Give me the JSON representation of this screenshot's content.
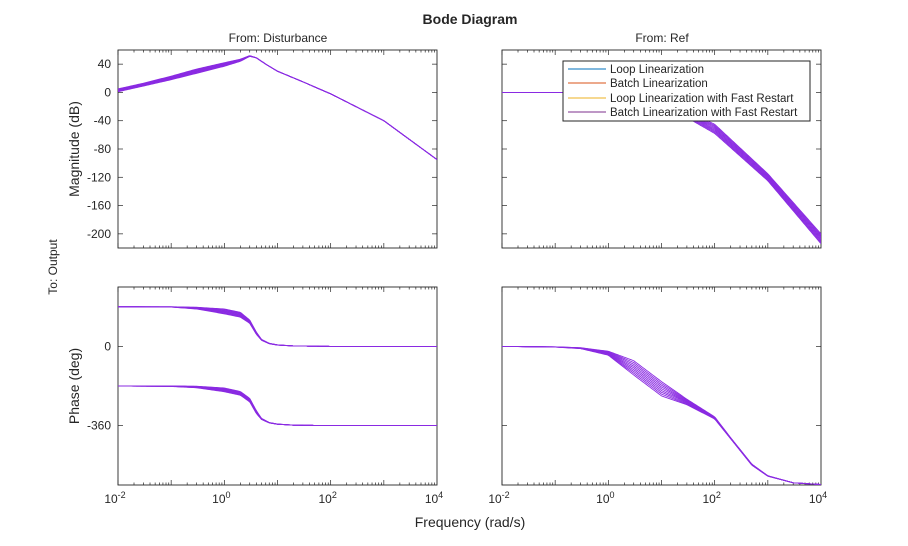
{
  "chart_data": {
    "type": "line",
    "plot_kind": "bode",
    "title": "Bode Diagram",
    "xlabel": "Frequency (rad/s)",
    "output_label": "To: Output",
    "x_scale": "log",
    "xlim": [
      0.01,
      10000
    ],
    "x_ticks": [
      {
        "base": "10",
        "exp": "-2"
      },
      {
        "base": "10",
        "exp": "0"
      },
      {
        "base": "10",
        "exp": "2"
      },
      {
        "base": "10",
        "exp": "4"
      }
    ],
    "x_tick_values": [
      0.01,
      1,
      100,
      10000
    ],
    "columns": [
      "From: Disturbance",
      "From: Ref"
    ],
    "magnitude": {
      "ylabel": "Magnitude (dB)",
      "ylim": [
        -220,
        60
      ],
      "ticks": [
        40,
        0,
        -40,
        -80,
        -120,
        -160,
        -200
      ],
      "tick_labels": [
        "40",
        "0",
        "-40",
        "-80",
        "-120",
        "-160",
        "-200"
      ]
    },
    "phase": {
      "ylabel": "Phase (deg)",
      "ylim": [
        -630,
        270
      ],
      "ticks": [
        0,
        -360
      ],
      "tick_labels": [
        "0",
        "-360"
      ]
    },
    "legend": {
      "position": "top-right of From: Ref magnitude axes",
      "entries": [
        {
          "name": "Loop Linearization",
          "color": "#0072BD"
        },
        {
          "name": "Batch Linearization",
          "color": "#D95319"
        },
        {
          "name": "Loop Linearization with Fast Restart",
          "color": "#EDB120"
        },
        {
          "name": "Batch Linearization with Fast Restart",
          "color": "#7E2F8E"
        }
      ]
    },
    "visible_series_color": "#8a2be2",
    "series": [
      {
        "from": "Disturbance",
        "magnitude_db": {
          "x": [
            0.01,
            0.03,
            0.1,
            0.3,
            1,
            2,
            3,
            4,
            6,
            10,
            30,
            100,
            1000,
            10000
          ],
          "low": [
            1,
            9,
            18,
            27,
            37,
            44,
            51,
            49,
            40,
            30,
            15,
            -2,
            -40,
            -95
          ],
          "high": [
            5,
            13,
            23,
            33,
            42,
            47,
            52,
            49,
            40,
            30,
            15,
            -2,
            -40,
            -95
          ]
        },
        "phase_upper_deg": {
          "x": [
            0.01,
            0.1,
            0.3,
            1,
            2,
            3,
            4,
            5,
            7,
            10,
            20,
            100,
            1000,
            10000
          ],
          "low": [
            180,
            179,
            170,
            148,
            133,
            105,
            55,
            28,
            12,
            6,
            2,
            0,
            0,
            0
          ],
          "high": [
            180,
            180,
            178,
            170,
            155,
            120,
            65,
            32,
            14,
            7,
            2,
            0,
            0,
            0
          ]
        },
        "phase_lower_deg": {
          "x": [
            0.01,
            0.1,
            0.3,
            1,
            2,
            3,
            4,
            5,
            7,
            10,
            20,
            100,
            1000,
            10000
          ],
          "low": [
            -180,
            -182,
            -188,
            -206,
            -222,
            -252,
            -305,
            -332,
            -348,
            -354,
            -358,
            -360,
            -360,
            -360
          ],
          "high": [
            -180,
            -180,
            -181,
            -189,
            -205,
            -236,
            -292,
            -327,
            -346,
            -353,
            -358,
            -360,
            -360,
            -360
          ]
        }
      },
      {
        "from": "Ref",
        "magnitude_db": {
          "x": [
            0.01,
            1,
            3,
            10,
            100,
            1000,
            10000
          ],
          "low": [
            0,
            0,
            -1,
            -15,
            -58,
            -125,
            -214
          ],
          "high": [
            0,
            0,
            0,
            -10,
            -45,
            -115,
            -200
          ]
        },
        "phase_deg": {
          "x": [
            0.01,
            0.1,
            0.3,
            1,
            3,
            10,
            30,
            100,
            200,
            500,
            1000,
            3000,
            10000
          ],
          "low": [
            0,
            -3,
            -10,
            -40,
            -130,
            -225,
            -265,
            -330,
            -420,
            -540,
            -590,
            -620,
            -628
          ],
          "high": [
            0,
            -2,
            -6,
            -22,
            -65,
            -160,
            -240,
            -320,
            -415,
            -535,
            -588,
            -620,
            -628
          ]
        }
      }
    ]
  }
}
